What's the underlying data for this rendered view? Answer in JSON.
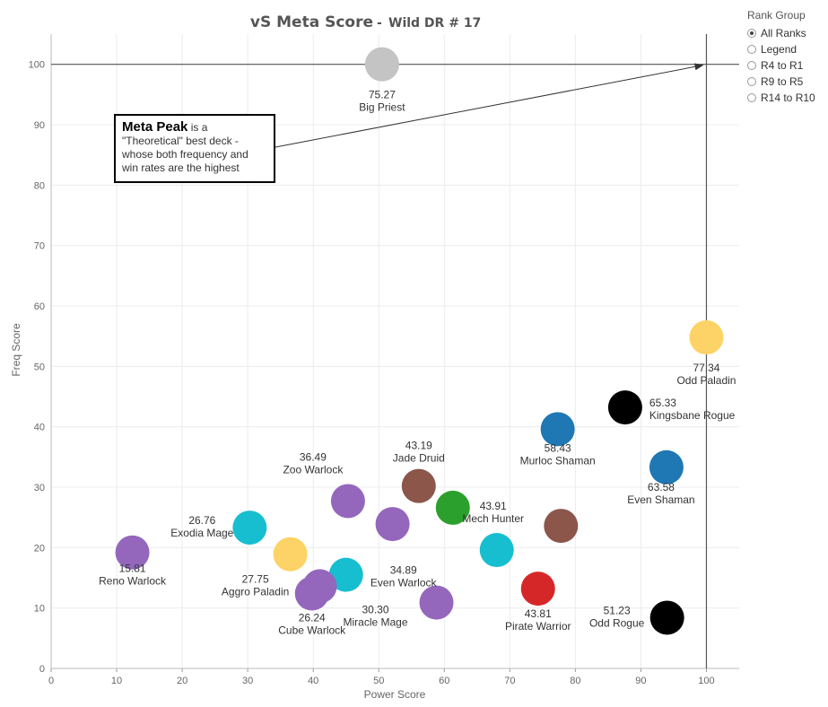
{
  "title": "vS Meta Score",
  "subtitle": "Wild DR # 17",
  "legend": {
    "title": "Rank Group",
    "options": [
      "All Ranks",
      "Legend",
      "R4 to R1",
      "R9 to R5",
      "R14 to R10"
    ],
    "selected": 0
  },
  "annotation": {
    "bold": "Meta Peak",
    "text": "is a \"Theoretical\" best deck - whose both frequency and win rates are the highest"
  },
  "chart_data": {
    "type": "scatter",
    "xlabel": "Power Score",
    "ylabel": "Freq Score",
    "xlim": [
      0,
      105
    ],
    "ylim": [
      0,
      105
    ],
    "xticks": [
      0,
      10,
      20,
      30,
      40,
      50,
      60,
      70,
      80,
      90,
      100
    ],
    "yticks": [
      0,
      10,
      20,
      30,
      40,
      50,
      60,
      70,
      80,
      90,
      100
    ],
    "grid": true,
    "meta_peak": {
      "x": 100,
      "y": 100
    },
    "points": [
      {
        "x": 50.5,
        "y": 100.0,
        "score": "75.27",
        "name": "Big Priest",
        "color": "#c4c4c4",
        "labeled": true
      },
      {
        "x": 100.0,
        "y": 54.8,
        "score": "77.34",
        "name": "Odd Paladin",
        "color": "#fdd266",
        "labeled": true
      },
      {
        "x": 87.6,
        "y": 43.2,
        "score": "65.33",
        "name": "Kingsbane Rogue",
        "color": "#000000",
        "labeled": true
      },
      {
        "x": 77.3,
        "y": 39.6,
        "score": "58.43",
        "name": "Murloc Shaman",
        "color": "#1f77b4",
        "labeled": true
      },
      {
        "x": 93.9,
        "y": 33.3,
        "score": "63.58",
        "name": "Even Shaman",
        "color": "#1f77b4",
        "labeled": true
      },
      {
        "x": 56.1,
        "y": 30.2,
        "score": "43.19",
        "name": "Jade Druid",
        "color": "#8c564b",
        "labeled": true
      },
      {
        "x": 61.3,
        "y": 26.6,
        "score": "",
        "name": "",
        "color": "#2ca02c",
        "labeled": false
      },
      {
        "x": 45.3,
        "y": 27.7,
        "score": "36.49",
        "name": "Zoo Warlock",
        "color": "#9467bd",
        "labeled": true
      },
      {
        "x": 52.1,
        "y": 23.9,
        "score": "",
        "name": "",
        "color": "#9467bd",
        "labeled": false
      },
      {
        "x": 77.8,
        "y": 23.6,
        "score": "",
        "name": "",
        "color": "#8c564b",
        "labeled": false
      },
      {
        "x": 68.0,
        "y": 19.6,
        "score": "43.91",
        "name": "Mech Hunter",
        "color": "#17becf",
        "labeled": true
      },
      {
        "x": 30.3,
        "y": 23.3,
        "score": "26.76",
        "name": "Exodia Mage",
        "color": "#17becf",
        "labeled": true
      },
      {
        "x": 12.4,
        "y": 19.2,
        "score": "15.81",
        "name": "Reno Warlock",
        "color": "#9467bd",
        "labeled": true
      },
      {
        "x": 36.5,
        "y": 18.9,
        "score": "27.75",
        "name": "Aggro Paladin",
        "color": "#fdd266",
        "labeled": true
      },
      {
        "x": 45.0,
        "y": 15.5,
        "score": "34.89",
        "name": "Even Warlock",
        "color": "#17becf",
        "labeled": true
      },
      {
        "x": 41.0,
        "y": 13.6,
        "score": "",
        "name": "",
        "color": "#9467bd",
        "labeled": false
      },
      {
        "x": 39.8,
        "y": 12.4,
        "score": "26.24",
        "name": "Cube Warlock",
        "color": "#9467bd",
        "labeled": true
      },
      {
        "x": 58.8,
        "y": 10.9,
        "score": "30.30",
        "name": "Miracle Mage",
        "color": "#9467bd",
        "labeled": true
      },
      {
        "x": 74.3,
        "y": 13.2,
        "score": "43.81",
        "name": "Pirate Warrior",
        "color": "#d62728",
        "labeled": true
      },
      {
        "x": 94.0,
        "y": 8.4,
        "score": "51.23",
        "name": "Odd Rogue",
        "color": "#000000",
        "labeled": true
      }
    ]
  }
}
